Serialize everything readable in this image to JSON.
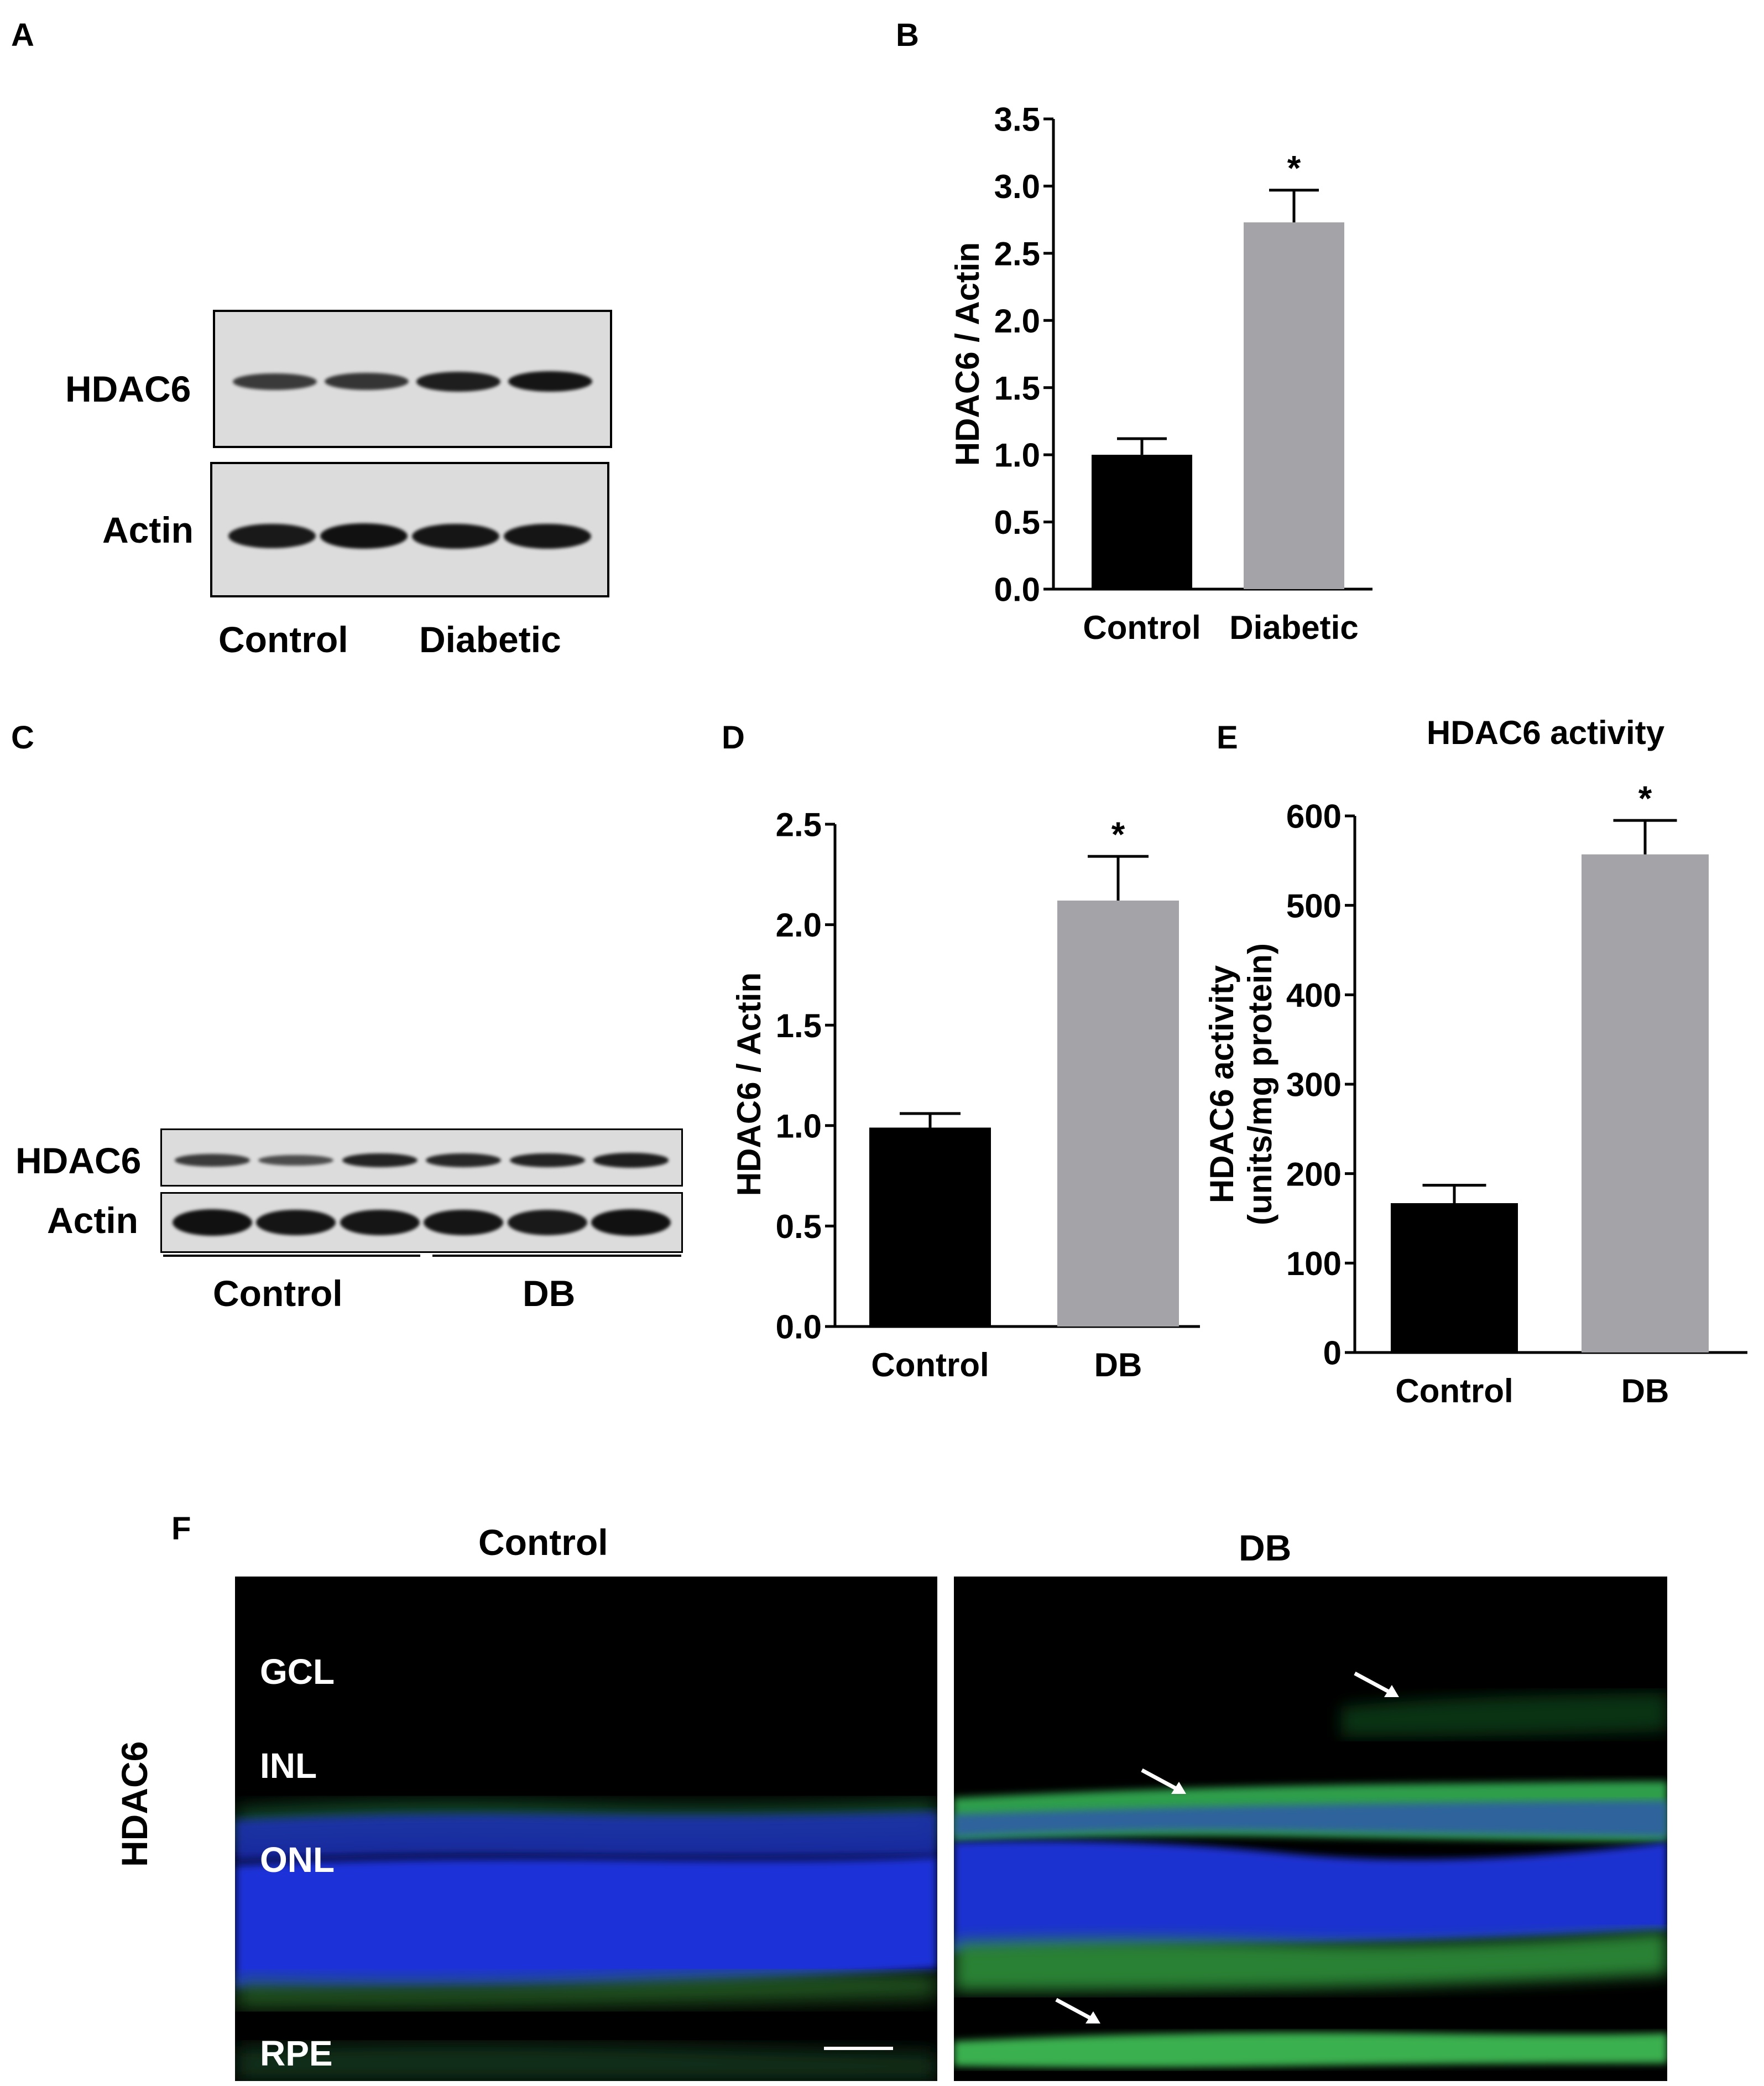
{
  "panels": {
    "A": {
      "letter": "A",
      "rows": [
        "HDAC6",
        "Actin"
      ],
      "groups": [
        "Control",
        "Diabetic"
      ],
      "hdac6_band_intensity": [
        0.55,
        0.6,
        0.85,
        0.95
      ],
      "actin_band_intensity": [
        0.9,
        1.0,
        0.95,
        0.95
      ]
    },
    "C": {
      "letter": "C",
      "rows": [
        "HDAC6",
        "Actin"
      ],
      "groups": [
        "Control",
        "DB"
      ],
      "hdac6_band_intensity": [
        0.55,
        0.35,
        0.8,
        0.75,
        0.8,
        0.85
      ],
      "actin_band_intensity": [
        1.0,
        0.95,
        0.95,
        0.95,
        0.9,
        1.0
      ]
    },
    "F": {
      "letter": "F",
      "row_label": "HDAC6",
      "columns": [
        "Control",
        "DB"
      ],
      "layers": [
        "GCL",
        "INL",
        "ONL",
        "RPE"
      ]
    }
  },
  "chart_data": [
    {
      "id": "B",
      "letter": "B",
      "type": "bar",
      "categories": [
        "Control",
        "Diabetic"
      ],
      "values": [
        1.0,
        2.73
      ],
      "errors": [
        0.12,
        0.24
      ],
      "colors": [
        "#000000",
        "#a3a3a8"
      ],
      "title": "",
      "ylabel": "HDAC6 / Actin",
      "ylim": [
        0,
        3.5
      ],
      "yticks": [
        0.0,
        0.5,
        1.0,
        1.5,
        2.0,
        2.5,
        3.0,
        3.5
      ],
      "ytick_labels": [
        "0.0",
        "0.5",
        "1.0",
        "1.5",
        "2.0",
        "2.5",
        "3.0",
        "3.5"
      ],
      "annotations": [
        "",
        "*"
      ]
    },
    {
      "id": "D",
      "letter": "D",
      "type": "bar",
      "categories": [
        "Control",
        "DB"
      ],
      "values": [
        0.99,
        2.12
      ],
      "errors": [
        0.07,
        0.22
      ],
      "colors": [
        "#000000",
        "#a3a3a8"
      ],
      "title": "",
      "ylabel": "HDAC6 / Actin",
      "ylim": [
        0,
        2.5
      ],
      "yticks": [
        0.0,
        0.5,
        1.0,
        1.5,
        2.0,
        2.5
      ],
      "ytick_labels": [
        "0.0",
        "0.5",
        "1.0",
        "1.5",
        "2.0",
        "2.5"
      ],
      "annotations": [
        "",
        "*"
      ]
    },
    {
      "id": "E",
      "letter": "E",
      "type": "bar",
      "categories": [
        "Control",
        "DB"
      ],
      "values": [
        167,
        557
      ],
      "errors": [
        20,
        38
      ],
      "colors": [
        "#000000",
        "#a3a3a8"
      ],
      "title": "HDAC6 activity",
      "ylabel": [
        "HDAC6 activity",
        "(units/mg protein)"
      ],
      "ylim": [
        0,
        600
      ],
      "yticks": [
        0,
        100,
        200,
        300,
        400,
        500,
        600
      ],
      "ytick_labels": [
        "0",
        "100",
        "200",
        "300",
        "400",
        "500",
        "600"
      ],
      "annotations": [
        "",
        "*"
      ]
    }
  ]
}
